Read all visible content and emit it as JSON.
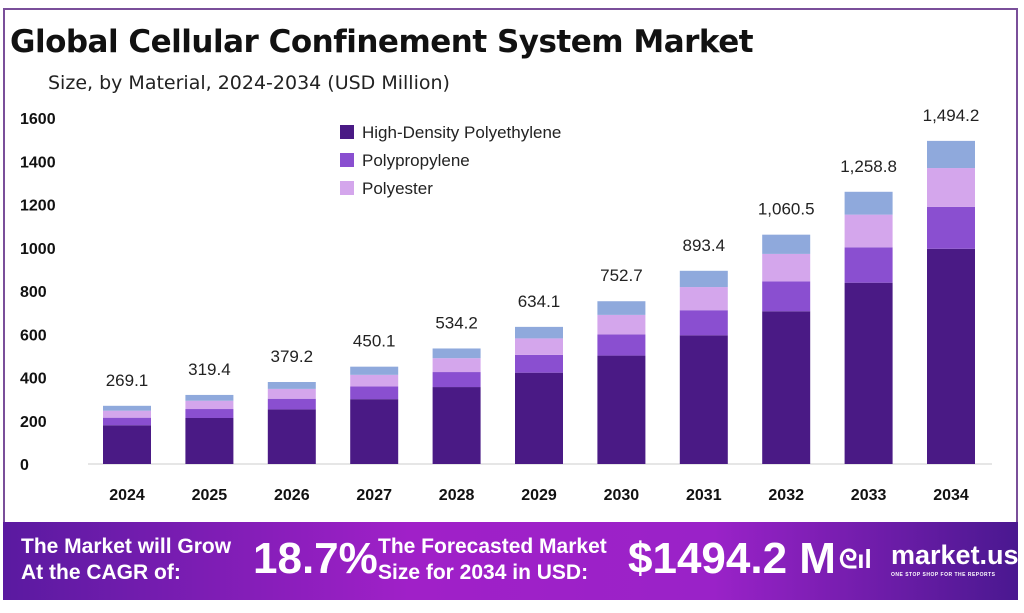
{
  "chart_data": {
    "type": "bar",
    "stacked": true,
    "title": "Global Cellular Confinement System Market",
    "subtitle": "Size, by Material, 2024-2034 (USD Million)",
    "categories": [
      "2024",
      "2025",
      "2026",
      "2027",
      "2028",
      "2029",
      "2030",
      "2031",
      "2032",
      "2033",
      "2034"
    ],
    "totals": [
      "269.1",
      "319.4",
      "379.2",
      "450.1",
      "534.2",
      "634.1",
      "752.7",
      "893.4",
      "1,060.5",
      "1,258.8",
      "1,494.2"
    ],
    "total_values": [
      269.1,
      319.4,
      379.2,
      450.1,
      534.2,
      634.1,
      752.7,
      893.4,
      1060.5,
      1258.8,
      1494.2
    ],
    "series": [
      {
        "name": "High-Density Polyethylene",
        "color": "#4a1a85",
        "values": [
          179.2,
          212.7,
          252.5,
          299.8,
          355.8,
          422.3,
          501.3,
          595.0,
          706.3,
          838.4,
          995.1
        ]
      },
      {
        "name": "Polypropylene",
        "color": "#8a4fd0",
        "values": [
          35.0,
          41.5,
          49.3,
          58.5,
          69.4,
          82.4,
          97.9,
          116.1,
          137.9,
          163.6,
          194.2
        ]
      },
      {
        "name": "Polyester",
        "color": "#d4a6ec",
        "values": [
          32.3,
          38.3,
          45.5,
          54.0,
          64.1,
          76.1,
          90.3,
          107.2,
          127.3,
          151.1,
          179.3
        ]
      },
      {
        "color": "#8fa9dc",
        "values": [
          22.6,
          26.9,
          31.9,
          37.8,
          44.9,
          53.3,
          63.2,
          75.1,
          89.0,
          105.7,
          125.6
        ]
      }
    ],
    "ylim": [
      0,
      1600
    ],
    "yticks": [
      "0",
      "200",
      "400",
      "600",
      "800",
      "1000",
      "1200",
      "1400",
      "1600"
    ],
    "grid": false,
    "legend": "top-left"
  },
  "banner": {
    "cagr_label_1": "The Market will Grow",
    "cagr_label_2": "At the CAGR of:",
    "cagr_value": "18.7%",
    "forecast_label_1": "The Forecasted Market",
    "forecast_label_2": "Size for 2034 in USD:",
    "forecast_value": "$1494.2 M",
    "brand": "market.us",
    "brand_tagline": "ONE STOP SHOP FOR THE REPORTS"
  }
}
